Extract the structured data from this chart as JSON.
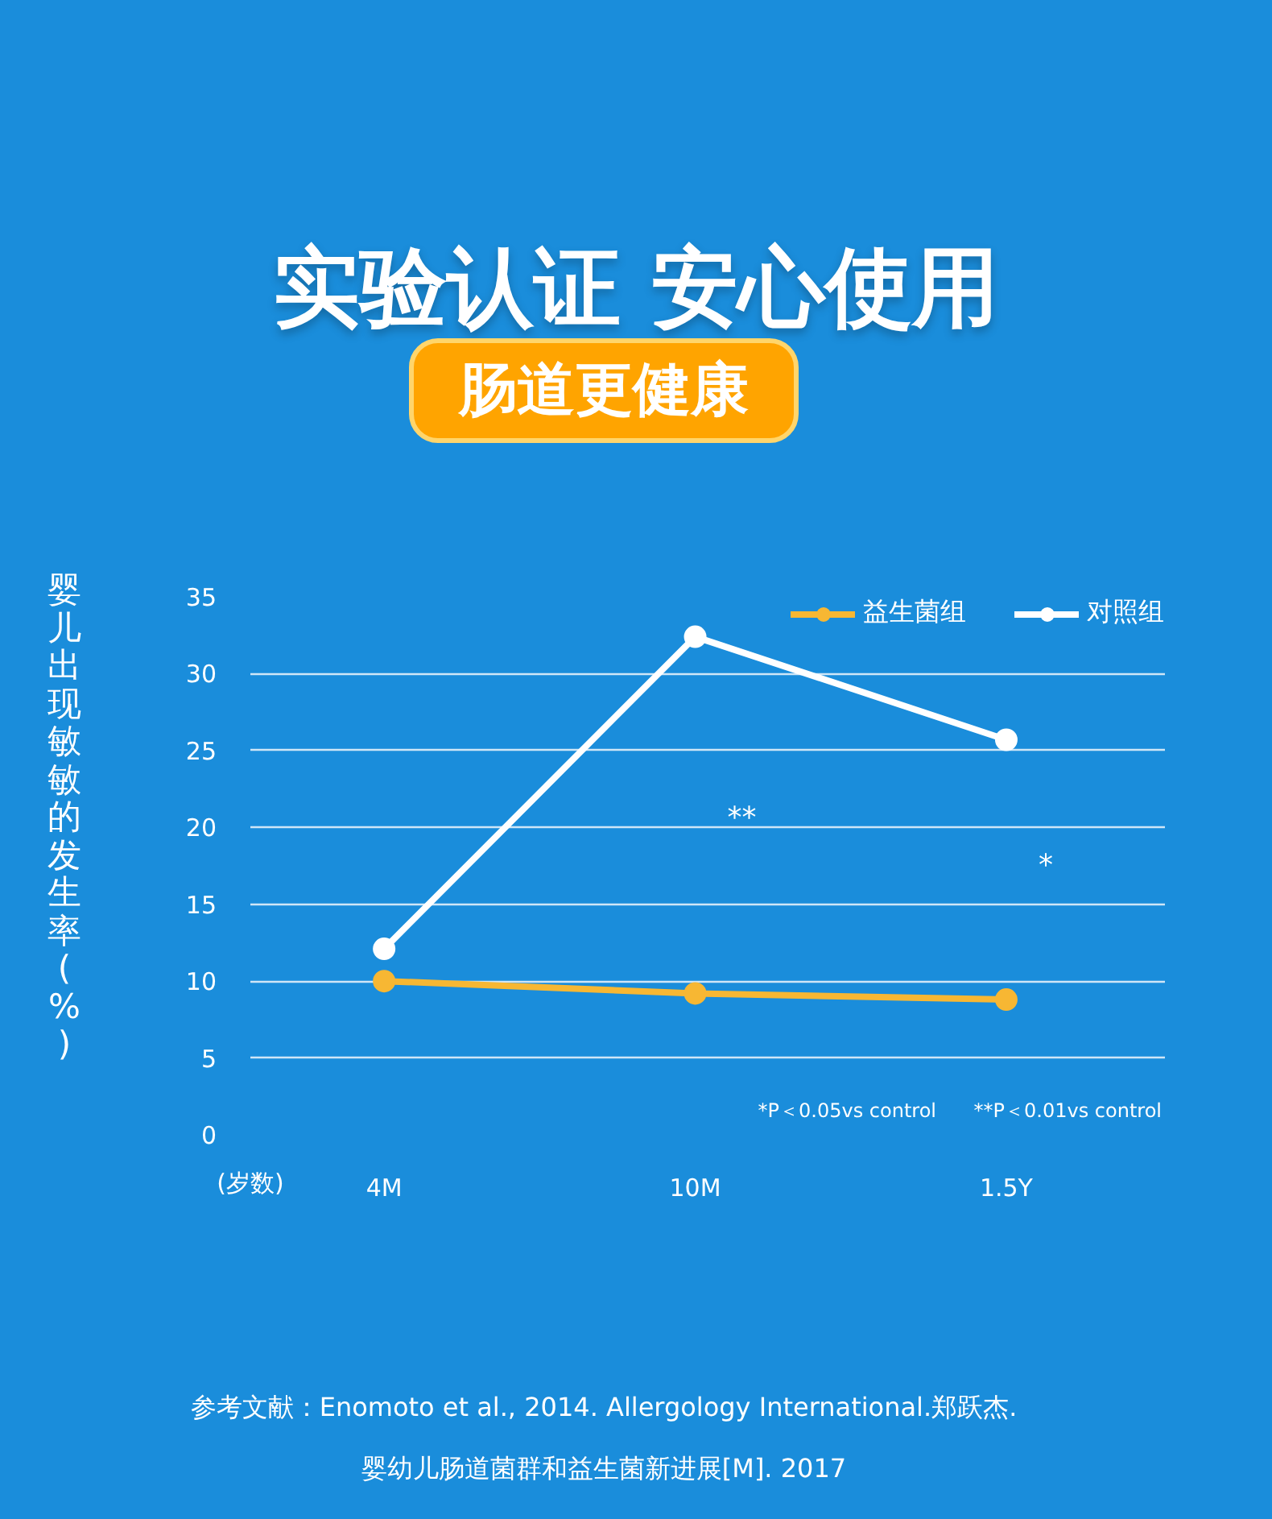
{
  "chart_data": {
    "type": "line",
    "title": "实验认证  安心使用",
    "subtitle": "肠道更健康",
    "ylabel": "婴儿出现敏敏的发生率(%)",
    "xlabel": "(岁数)",
    "categories": [
      "4M",
      "10M",
      "1.5Y"
    ],
    "series": [
      {
        "name": "益生菌组",
        "color": "#f7b733",
        "values": [
          10.0,
          9.2,
          8.8
        ]
      },
      {
        "name": "对照组",
        "color": "#ffffff",
        "values": [
          12.1,
          32.4,
          25.7
        ]
      }
    ],
    "ylim": [
      0,
      35
    ],
    "yticks": [
      0,
      5,
      10,
      15,
      20,
      25,
      30,
      35
    ],
    "grid": "y",
    "legend": "top right",
    "marker": "circle",
    "line_style": "solid",
    "annotations": [
      "**",
      "*",
      "*P＜0.05vs control",
      "**P＜0.01vs control",
      "参考文献：Enomoto et al., 2014. Allergology International.郑跃杰.",
      "婴幼儿肠道菌群和益生菌新进展[M]. 2017"
    ]
  }
}
